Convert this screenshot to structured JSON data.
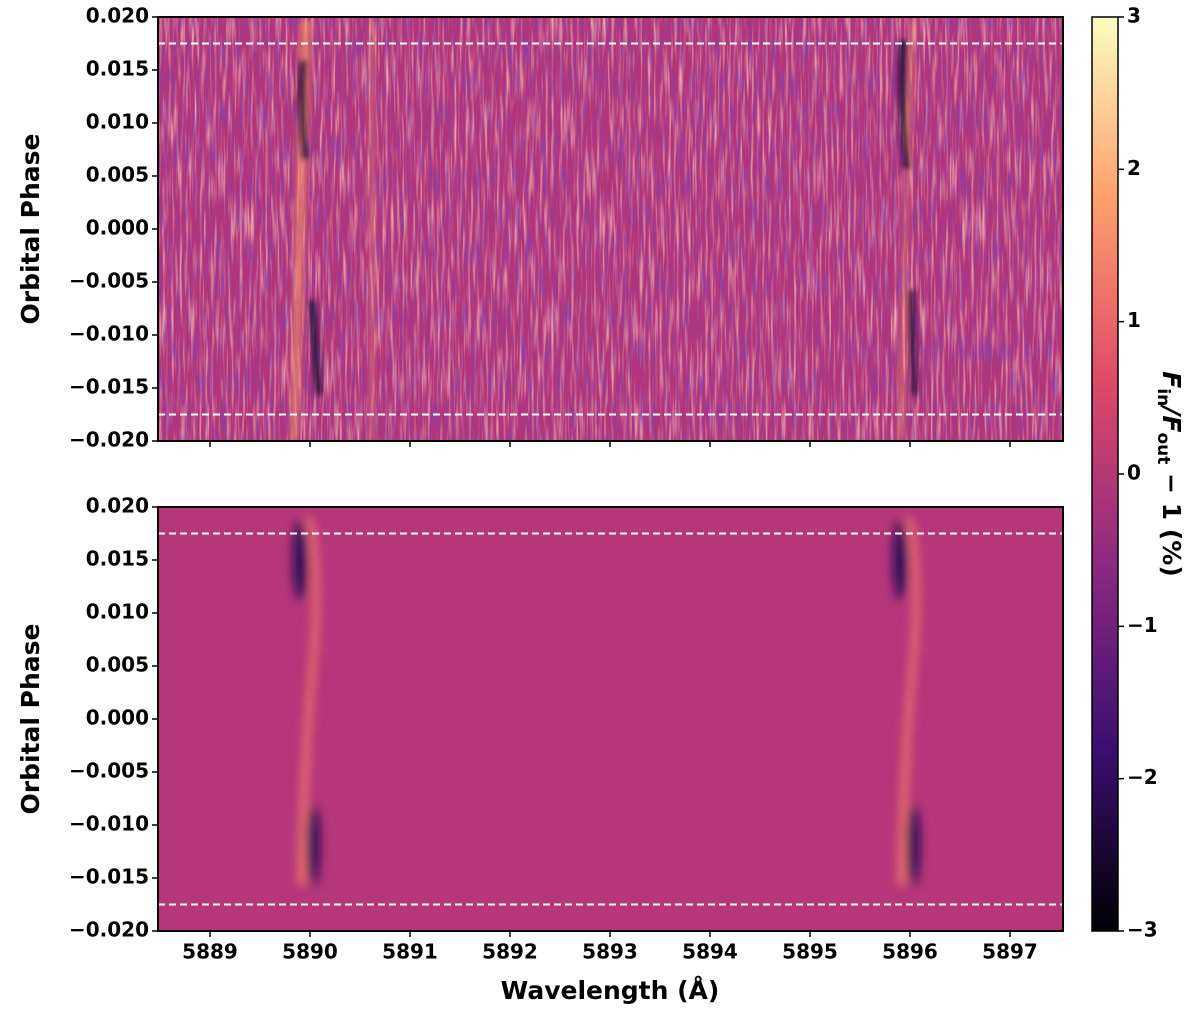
{
  "chart_data": {
    "type": "heatmap",
    "colormap": [
      "#000004",
      "#3b0f70",
      "#8c2981",
      "#de4968",
      "#fe9f6d",
      "#fcfdbf"
    ],
    "xlabel": "Wavelength (Å)",
    "xlim": [
      5888.48,
      5897.53
    ],
    "xticks": [
      5889,
      5890,
      5891,
      5892,
      5893,
      5894,
      5895,
      5896,
      5897
    ],
    "panels": [
      {
        "ylabel": "Orbital Phase",
        "ylim": [
          -0.02,
          0.02
        ],
        "yticks": [
          {
            "value": -0.02,
            "label": "−0.020"
          },
          {
            "value": -0.015,
            "label": "−0.015"
          },
          {
            "value": -0.01,
            "label": "−0.010"
          },
          {
            "value": -0.005,
            "label": "−0.005"
          },
          {
            "value": 0,
            "label": "0.000"
          },
          {
            "value": 0.005,
            "label": "0.005"
          },
          {
            "value": 0.01,
            "label": "0.010"
          },
          {
            "value": 0.015,
            "label": "0.015"
          },
          {
            "value": 0.02,
            "label": "0.020"
          }
        ],
        "hlines": [
          -0.0175,
          0.0175
        ],
        "hline_color": "#ffffff"
      },
      {
        "ylabel": "Orbital Phase",
        "ylim": [
          -0.02,
          0.02
        ],
        "yticks": [
          {
            "value": -0.02,
            "label": "−0.020"
          },
          {
            "value": -0.015,
            "label": "−0.015"
          },
          {
            "value": -0.01,
            "label": "−0.010"
          },
          {
            "value": -0.005,
            "label": "−0.005"
          },
          {
            "value": 0,
            "label": "0.000"
          },
          {
            "value": 0.005,
            "label": "0.005"
          },
          {
            "value": 0.01,
            "label": "0.010"
          },
          {
            "value": 0.015,
            "label": "0.015"
          },
          {
            "value": 0.02,
            "label": "0.020"
          }
        ],
        "hlines": [
          -0.0175,
          0.0175
        ],
        "hline_color": "#ffffff"
      }
    ],
    "colorbar": {
      "lim": [
        -3,
        3
      ],
      "ticks": [
        {
          "value": -3,
          "label": "−3"
        },
        {
          "value": -2,
          "label": "−2"
        },
        {
          "value": -1,
          "label": "−1"
        },
        0,
        1,
        2,
        3
      ],
      "label_parts": [
        "F",
        "in",
        "/F",
        "out",
        " − 1 (%)"
      ]
    }
  }
}
